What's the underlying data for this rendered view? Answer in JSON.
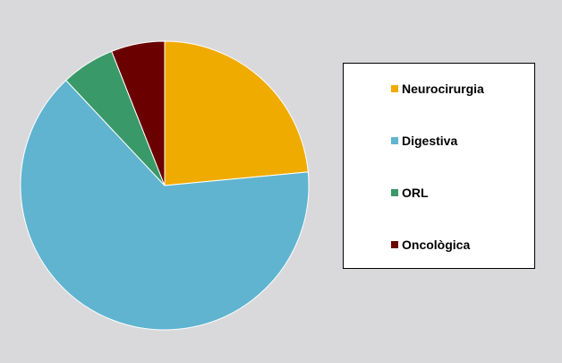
{
  "chart_data": {
    "type": "pie",
    "title": "",
    "legend_position": "right",
    "start_angle_deg": 0,
    "direction": "clockwise",
    "slices": [
      {
        "label": "Neurocirurgia",
        "value": 23.5,
        "color": "#f0ab00"
      },
      {
        "label": "Digestiva",
        "value": 64.5,
        "color": "#60b4cf"
      },
      {
        "label": "ORL",
        "value": 6.0,
        "color": "#3a9969"
      },
      {
        "label": "Oncològica",
        "value": 6.0,
        "color": "#6b0000"
      }
    ]
  }
}
